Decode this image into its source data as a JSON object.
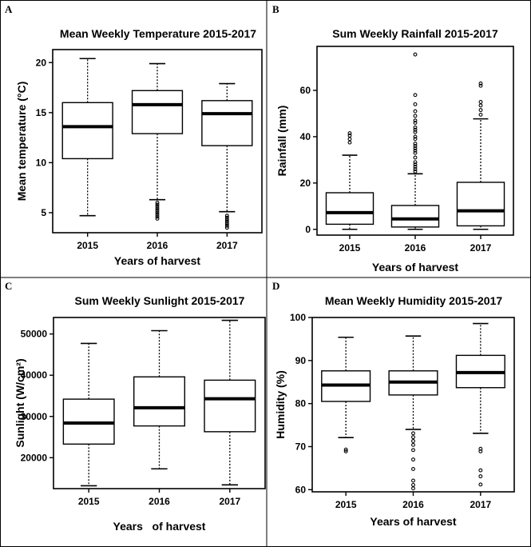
{
  "panels": [
    {
      "letter": "A",
      "chart_data": {
        "type": "box",
        "title": "Mean Weekly Temperature 2015-2017",
        "xlabel": "Years of harvest",
        "ylabel": "Mean temperature (°C)",
        "categories": [
          "2015",
          "2016",
          "2017"
        ],
        "ylim": [
          3.0,
          21.3
        ],
        "yticks": [
          5,
          10,
          15,
          20
        ],
        "boxes": [
          {
            "min": 4.7,
            "q1": 10.4,
            "median": 13.6,
            "q3": 16.0,
            "max": 20.4,
            "outliers": []
          },
          {
            "min": 6.3,
            "q1": 12.9,
            "median": 15.8,
            "q3": 17.2,
            "max": 19.9,
            "outliers": [
              6.0,
              5.8,
              5.6,
              5.4,
              5.2,
              5.0,
              4.8,
              4.6,
              4.4
            ]
          },
          {
            "min": 5.1,
            "q1": 11.7,
            "median": 14.9,
            "q3": 16.2,
            "max": 17.9,
            "outliers": [
              4.7,
              4.5,
              4.3,
              4.1,
              3.9,
              3.7,
              3.5
            ]
          }
        ]
      }
    },
    {
      "letter": "B",
      "chart_data": {
        "type": "box",
        "title": "Sum Weekly Rainfall 2015-2017",
        "xlabel": "Years of harvest",
        "ylabel": "Rainfall (mm)",
        "categories": [
          "2015",
          "2016",
          "2017"
        ],
        "ylim": [
          -2.5,
          79
        ],
        "yticks": [
          0,
          20,
          40,
          60
        ],
        "boxes": [
          {
            "min": 0,
            "q1": 2.2,
            "median": 7.2,
            "q3": 15.8,
            "max": 32.0,
            "outliers": [
              37.5,
              39.0,
              40.5,
              41.5
            ]
          },
          {
            "min": 0,
            "q1": 1.0,
            "median": 4.5,
            "q3": 10.3,
            "max": 24.0,
            "outliers": [
              25,
              26,
              27,
              28,
              29,
              31,
              33,
              34,
              35,
              36,
              37,
              39,
              40,
              42,
              43,
              44,
              46,
              47,
              49,
              51,
              54,
              58,
              75.5
            ]
          },
          {
            "min": 0,
            "q1": 1.5,
            "median": 8.0,
            "q3": 20.3,
            "max": 47.7,
            "outliers": [
              49.5,
              51.5,
              53.5,
              55.0,
              62.0,
              63.0
            ]
          }
        ]
      }
    },
    {
      "letter": "C",
      "chart_data": {
        "type": "box",
        "title": "Sum Weekly Sunlight 2015-2017",
        "xlabel": "Years   of harvest",
        "ylabel": "Sunlight (W/cm²)",
        "categories": [
          "2015",
          "2016",
          "2017"
        ],
        "ylim": [
          12500,
          54000
        ],
        "yticks": [
          20000,
          30000,
          40000,
          50000
        ],
        "boxes": [
          {
            "min": 13200,
            "q1": 23300,
            "median": 28400,
            "q3": 34200,
            "max": 47700,
            "outliers": []
          },
          {
            "min": 17300,
            "q1": 27700,
            "median": 32100,
            "q3": 39600,
            "max": 50800,
            "outliers": []
          },
          {
            "min": 13400,
            "q1": 26300,
            "median": 34300,
            "q3": 38800,
            "max": 53300,
            "outliers": []
          }
        ]
      }
    },
    {
      "letter": "D",
      "chart_data": {
        "type": "box",
        "title": "Mean Weekly Humidity 2015-2017",
        "xlabel": "Years of harvest",
        "ylabel": "Humidity (%)",
        "categories": [
          "2015",
          "2016",
          "2017"
        ],
        "ylim": [
          59.5,
          100
        ],
        "yticks": [
          60,
          70,
          80,
          90,
          100
        ],
        "boxes": [
          {
            "min": 72.1,
            "q1": 80.5,
            "median": 84.3,
            "q3": 87.6,
            "max": 95.4,
            "outliers": [
              69.3,
              68.9
            ]
          },
          {
            "min": 74.0,
            "q1": 82.0,
            "median": 85.0,
            "q3": 87.6,
            "max": 95.7,
            "outliers": [
              73.1,
              72.2,
              71.3,
              70.4,
              69.2,
              67.0,
              64.8,
              62.1,
              61.1,
              60.3
            ]
          },
          {
            "min": 73.1,
            "q1": 83.7,
            "median": 87.2,
            "q3": 91.2,
            "max": 98.6,
            "outliers": [
              69.5,
              68.9,
              64.5,
              63.1,
              61.2
            ]
          }
        ]
      }
    }
  ]
}
